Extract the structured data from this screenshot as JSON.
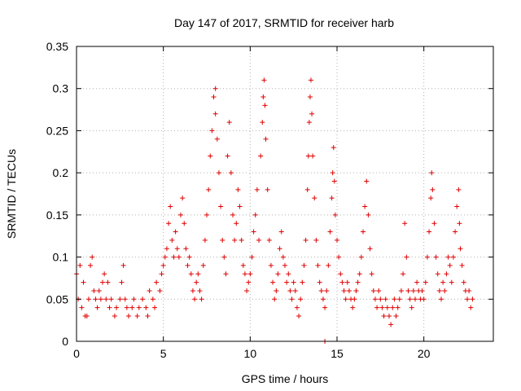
{
  "chart_data": {
    "type": "scatter",
    "title": "Day 147 of 2017, SRMTID for receiver harb",
    "xlabel": "GPS time / hours",
    "ylabel": "SRMTID / TECUs",
    "xlim": [
      0,
      24
    ],
    "ylim": [
      0,
      0.35
    ],
    "xticks": [
      "0",
      "5",
      "10",
      "15",
      "20"
    ],
    "xtick_values": [
      0,
      5,
      10,
      15,
      20
    ],
    "yticks": [
      "0",
      "0.05",
      "0.1",
      "0.15",
      "0.2",
      "0.25",
      "0.3",
      "0.35"
    ],
    "ytick_values": [
      0,
      0.05,
      0.1,
      0.15,
      0.2,
      0.25,
      0.3,
      0.35
    ],
    "grid": true,
    "marker": "+",
    "series": [
      {
        "name": "SRMTID",
        "color": "#e00000",
        "points": [
          [
            0.0,
            0.08
          ],
          [
            0.1,
            0.05
          ],
          [
            0.2,
            0.09
          ],
          [
            0.3,
            0.04
          ],
          [
            0.4,
            0.07
          ],
          [
            0.5,
            0.03
          ],
          [
            0.6,
            0.03
          ],
          [
            0.7,
            0.05
          ],
          [
            0.8,
            0.09
          ],
          [
            0.9,
            0.1
          ],
          [
            1.0,
            0.06
          ],
          [
            1.1,
            0.05
          ],
          [
            1.2,
            0.04
          ],
          [
            1.3,
            0.06
          ],
          [
            1.4,
            0.05
          ],
          [
            1.5,
            0.07
          ],
          [
            1.6,
            0.08
          ],
          [
            1.7,
            0.05
          ],
          [
            1.8,
            0.07
          ],
          [
            1.9,
            0.04
          ],
          [
            2.0,
            0.05
          ],
          [
            2.2,
            0.03
          ],
          [
            2.3,
            0.04
          ],
          [
            2.5,
            0.05
          ],
          [
            2.6,
            0.07
          ],
          [
            2.7,
            0.09
          ],
          [
            2.8,
            0.05
          ],
          [
            2.9,
            0.04
          ],
          [
            3.0,
            0.03
          ],
          [
            3.2,
            0.04
          ],
          [
            3.3,
            0.05
          ],
          [
            3.5,
            0.03
          ],
          [
            3.6,
            0.04
          ],
          [
            3.8,
            0.05
          ],
          [
            4.0,
            0.04
          ],
          [
            4.1,
            0.03
          ],
          [
            4.2,
            0.06
          ],
          [
            4.4,
            0.05
          ],
          [
            4.5,
            0.04
          ],
          [
            4.6,
            0.07
          ],
          [
            4.8,
            0.06
          ],
          [
            4.9,
            0.08
          ],
          [
            5.0,
            0.09
          ],
          [
            5.1,
            0.1
          ],
          [
            5.2,
            0.11
          ],
          [
            5.3,
            0.14
          ],
          [
            5.4,
            0.16
          ],
          [
            5.5,
            0.12
          ],
          [
            5.6,
            0.1
          ],
          [
            5.7,
            0.13
          ],
          [
            5.8,
            0.11
          ],
          [
            5.9,
            0.1
          ],
          [
            6.0,
            0.15
          ],
          [
            6.1,
            0.17
          ],
          [
            6.2,
            0.14
          ],
          [
            6.3,
            0.11
          ],
          [
            6.4,
            0.09
          ],
          [
            6.5,
            0.1
          ],
          [
            6.6,
            0.08
          ],
          [
            6.7,
            0.06
          ],
          [
            6.8,
            0.05
          ],
          [
            6.9,
            0.07
          ],
          [
            7.0,
            0.08
          ],
          [
            7.1,
            0.06
          ],
          [
            7.2,
            0.05
          ],
          [
            7.3,
            0.09
          ],
          [
            7.4,
            0.12
          ],
          [
            7.5,
            0.15
          ],
          [
            7.6,
            0.18
          ],
          [
            7.7,
            0.22
          ],
          [
            7.8,
            0.25
          ],
          [
            7.9,
            0.29
          ],
          [
            8.0,
            0.3
          ],
          [
            8.0,
            0.27
          ],
          [
            8.1,
            0.24
          ],
          [
            8.2,
            0.2
          ],
          [
            8.3,
            0.16
          ],
          [
            8.4,
            0.12
          ],
          [
            8.5,
            0.1
          ],
          [
            8.6,
            0.08
          ],
          [
            8.7,
            0.22
          ],
          [
            8.8,
            0.26
          ],
          [
            8.9,
            0.2
          ],
          [
            9.0,
            0.15
          ],
          [
            9.1,
            0.12
          ],
          [
            9.2,
            0.14
          ],
          [
            9.3,
            0.18
          ],
          [
            9.4,
            0.16
          ],
          [
            9.5,
            0.12
          ],
          [
            9.6,
            0.09
          ],
          [
            9.7,
            0.08
          ],
          [
            9.8,
            0.06
          ],
          [
            9.9,
            0.07
          ],
          [
            10.0,
            0.08
          ],
          [
            10.1,
            0.1
          ],
          [
            10.2,
            0.13
          ],
          [
            10.3,
            0.15
          ],
          [
            10.4,
            0.18
          ],
          [
            10.5,
            0.12
          ],
          [
            10.6,
            0.22
          ],
          [
            10.7,
            0.26
          ],
          [
            10.75,
            0.29
          ],
          [
            10.8,
            0.31
          ],
          [
            10.85,
            0.28
          ],
          [
            10.9,
            0.24
          ],
          [
            11.0,
            0.18
          ],
          [
            11.1,
            0.12
          ],
          [
            11.2,
            0.09
          ],
          [
            11.3,
            0.07
          ],
          [
            11.4,
            0.05
          ],
          [
            11.5,
            0.06
          ],
          [
            11.6,
            0.08
          ],
          [
            11.7,
            0.11
          ],
          [
            11.8,
            0.13
          ],
          [
            11.9,
            0.1
          ],
          [
            12.0,
            0.09
          ],
          [
            12.1,
            0.07
          ],
          [
            12.2,
            0.08
          ],
          [
            12.3,
            0.06
          ],
          [
            12.4,
            0.05
          ],
          [
            12.5,
            0.07
          ],
          [
            12.6,
            0.06
          ],
          [
            12.7,
            0.04
          ],
          [
            12.8,
            0.03
          ],
          [
            12.9,
            0.05
          ],
          [
            13.0,
            0.07
          ],
          [
            13.1,
            0.09
          ],
          [
            13.2,
            0.12
          ],
          [
            13.3,
            0.18
          ],
          [
            13.35,
            0.22
          ],
          [
            13.4,
            0.26
          ],
          [
            13.45,
            0.29
          ],
          [
            13.5,
            0.31
          ],
          [
            13.55,
            0.27
          ],
          [
            13.6,
            0.22
          ],
          [
            13.7,
            0.17
          ],
          [
            13.8,
            0.12
          ],
          [
            13.9,
            0.09
          ],
          [
            14.0,
            0.07
          ],
          [
            14.1,
            0.06
          ],
          [
            14.2,
            0.05
          ],
          [
            14.3,
            0.04
          ],
          [
            14.4,
            0.06
          ],
          [
            14.5,
            0.09
          ],
          [
            14.6,
            0.13
          ],
          [
            14.7,
            0.17
          ],
          [
            14.75,
            0.2
          ],
          [
            14.8,
            0.23
          ],
          [
            14.85,
            0.19
          ],
          [
            14.9,
            0.15
          ],
          [
            15.0,
            0.12
          ],
          [
            15.1,
            0.1
          ],
          [
            15.2,
            0.08
          ],
          [
            15.3,
            0.07
          ],
          [
            15.4,
            0.06
          ],
          [
            15.5,
            0.05
          ],
          [
            15.6,
            0.07
          ],
          [
            15.7,
            0.06
          ],
          [
            15.8,
            0.05
          ],
          [
            15.9,
            0.04
          ],
          [
            16.0,
            0.05
          ],
          [
            16.1,
            0.06
          ],
          [
            16.2,
            0.07
          ],
          [
            16.3,
            0.08
          ],
          [
            16.4,
            0.1
          ],
          [
            16.5,
            0.13
          ],
          [
            16.6,
            0.16
          ],
          [
            16.7,
            0.19
          ],
          [
            16.8,
            0.15
          ],
          [
            16.9,
            0.11
          ],
          [
            17.0,
            0.08
          ],
          [
            17.1,
            0.06
          ],
          [
            17.2,
            0.05
          ],
          [
            17.3,
            0.04
          ],
          [
            17.4,
            0.06
          ],
          [
            17.5,
            0.05
          ],
          [
            17.6,
            0.04
          ],
          [
            17.7,
            0.03
          ],
          [
            17.8,
            0.05
          ],
          [
            17.9,
            0.04
          ],
          [
            18.0,
            0.03
          ],
          [
            18.1,
            0.02
          ],
          [
            18.2,
            0.04
          ],
          [
            18.3,
            0.05
          ],
          [
            18.4,
            0.03
          ],
          [
            18.5,
            0.04
          ],
          [
            18.6,
            0.05
          ],
          [
            18.7,
            0.06
          ],
          [
            18.8,
            0.08
          ],
          [
            18.9,
            0.14
          ],
          [
            19.0,
            0.1
          ],
          [
            19.1,
            0.06
          ],
          [
            19.2,
            0.05
          ],
          [
            19.3,
            0.04
          ],
          [
            19.4,
            0.06
          ],
          [
            19.5,
            0.05
          ],
          [
            19.6,
            0.07
          ],
          [
            19.7,
            0.06
          ],
          [
            19.8,
            0.05
          ],
          [
            19.9,
            0.06
          ],
          [
            20.0,
            0.05
          ],
          [
            20.1,
            0.07
          ],
          [
            20.2,
            0.1
          ],
          [
            20.3,
            0.13
          ],
          [
            20.4,
            0.17
          ],
          [
            20.45,
            0.2
          ],
          [
            20.5,
            0.18
          ],
          [
            20.6,
            0.14
          ],
          [
            20.7,
            0.1
          ],
          [
            20.8,
            0.08
          ],
          [
            20.9,
            0.06
          ],
          [
            21.0,
            0.05
          ],
          [
            21.1,
            0.07
          ],
          [
            21.2,
            0.06
          ],
          [
            21.3,
            0.08
          ],
          [
            21.4,
            0.1
          ],
          [
            21.5,
            0.09
          ],
          [
            21.6,
            0.07
          ],
          [
            21.7,
            0.1
          ],
          [
            21.8,
            0.13
          ],
          [
            21.9,
            0.16
          ],
          [
            22.0,
            0.18
          ],
          [
            22.05,
            0.14
          ],
          [
            22.1,
            0.11
          ],
          [
            22.2,
            0.09
          ],
          [
            22.3,
            0.07
          ],
          [
            22.4,
            0.06
          ],
          [
            22.5,
            0.05
          ],
          [
            22.6,
            0.06
          ],
          [
            22.7,
            0.04
          ],
          [
            22.8,
            0.05
          ],
          [
            14.3,
            0.0
          ]
        ]
      }
    ]
  }
}
